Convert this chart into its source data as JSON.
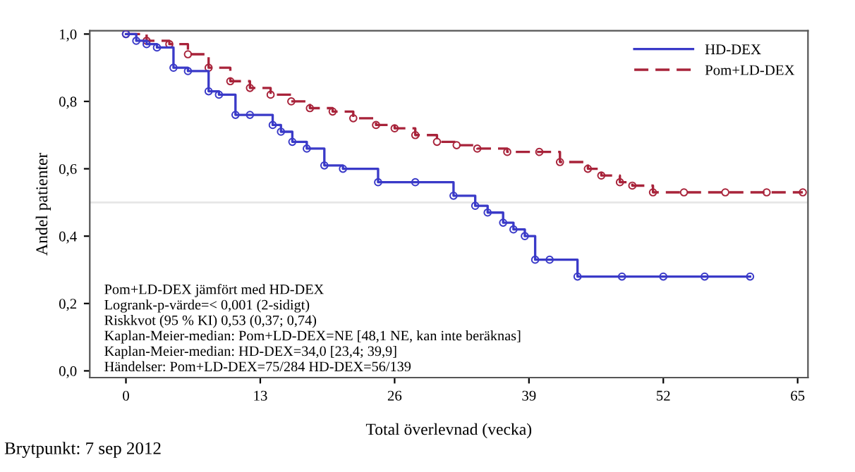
{
  "chart_data": {
    "type": "step",
    "xlabel": "Total överlevnad (vecka)",
    "ylabel": "Andel patienter",
    "xlim": [
      -3.5,
      66
    ],
    "ylim": [
      -0.02,
      1.01
    ],
    "xticks": [
      0,
      13,
      26,
      39,
      52,
      65
    ],
    "yticks": [
      {
        "value": 0.0,
        "label": "0,0"
      },
      {
        "value": 0.2,
        "label": "0,2"
      },
      {
        "value": 0.4,
        "label": "0,4"
      },
      {
        "value": 0.6,
        "label": "0,6"
      },
      {
        "value": 0.8,
        "label": "0,8"
      },
      {
        "value": 1.0,
        "label": "1,0"
      }
    ],
    "legend": "top right",
    "grid": false,
    "marker": "circle",
    "ref_lines": [
      {
        "axis": "y",
        "value": 0.5,
        "label": null,
        "color": "#e6e6e6"
      }
    ],
    "series": [
      {
        "name": "HD-DEX",
        "color": "#3a3ac8",
        "line_style": "solid",
        "x": [
          0,
          1,
          2,
          3,
          4.6,
          6,
          8.0,
          9,
          10.6,
          12,
          14.2,
          15,
          16.1,
          17.5,
          19.2,
          21,
          24.4,
          28,
          31.7,
          33.8,
          35,
          36.5,
          37.5,
          38.6,
          39.6,
          41,
          43.7,
          48,
          52,
          56,
          60.4
        ],
        "values": [
          1.0,
          0.98,
          0.97,
          0.96,
          0.9,
          0.89,
          0.83,
          0.82,
          0.76,
          0.76,
          0.73,
          0.71,
          0.68,
          0.66,
          0.61,
          0.6,
          0.56,
          0.56,
          0.52,
          0.49,
          0.47,
          0.44,
          0.42,
          0.4,
          0.33,
          0.33,
          0.28,
          0.28,
          0.28,
          0.28,
          0.28
        ]
      },
      {
        "name": "Pom+LD-DEX",
        "color": "#a8233a",
        "line_style": "dashed",
        "x": [
          0,
          2,
          4.2,
          6,
          8,
          10.1,
          12,
          14,
          16,
          17.8,
          20,
          22,
          24.2,
          26,
          28,
          30.1,
          32,
          34,
          36.9,
          40,
          42,
          44.7,
          46,
          47.8,
          49,
          51,
          54,
          58,
          62,
          65.5
        ],
        "values": [
          1.0,
          0.98,
          0.97,
          0.94,
          0.9,
          0.86,
          0.84,
          0.82,
          0.8,
          0.78,
          0.77,
          0.75,
          0.73,
          0.72,
          0.7,
          0.68,
          0.67,
          0.66,
          0.65,
          0.65,
          0.62,
          0.6,
          0.58,
          0.56,
          0.55,
          0.53,
          0.53,
          0.53,
          0.53,
          0.53
        ]
      }
    ],
    "annotations": [
      "Pom+LD-DEX jämfört med HD-DEX\nLogrank-p-värde=< 0,001 (2-sidigt)\nRiskkvot (95 % KI) 0,53 (0,37; 0,74)\nKaplan-Meier-median: Pom+LD-DEX=NE [48,1 NE, kan inte beräknas]\nKaplan-Meier-median: HD-DEX=34,0 [23,4; 39,9]\nHändelser: Pom+LD-DEX=75/284 HD-DEX=56/139",
      "Brytpunkt: 7 sep 2012"
    ]
  }
}
